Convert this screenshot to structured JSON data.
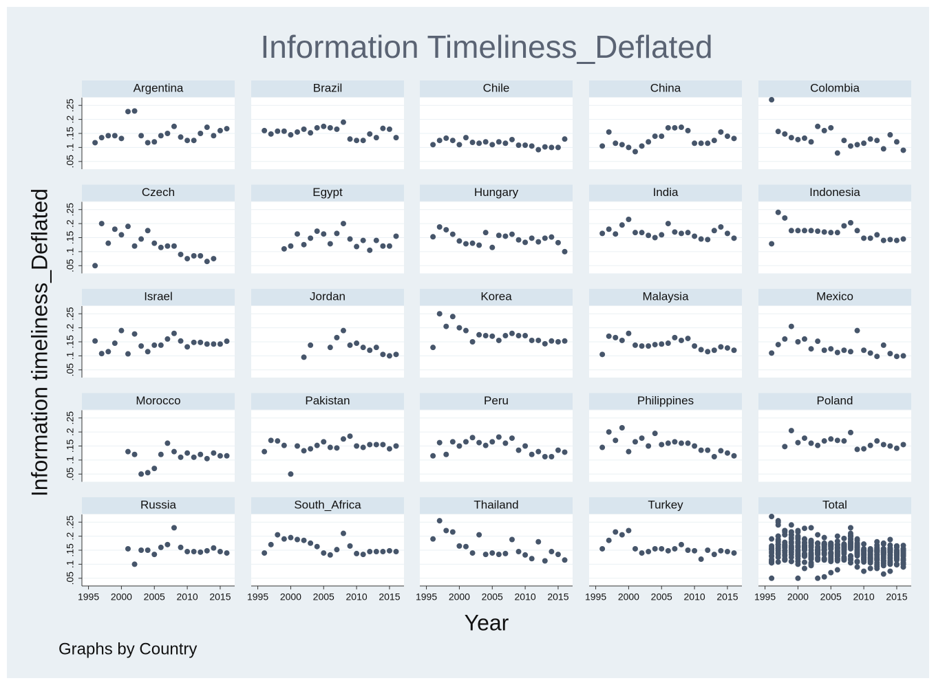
{
  "chart_data": {
    "type": "scatter",
    "title": "Information Timeliness_Deflated",
    "ylabel": "Information timeliness_Deflated",
    "xlabel": "Year",
    "note": "Graphs by Country",
    "color": "#46556a",
    "grid": true,
    "x": [
      1996,
      1997,
      1998,
      1999,
      2000,
      2001,
      2002,
      2003,
      2004,
      2005,
      2006,
      2007,
      2008,
      2009,
      2010,
      2011,
      2012,
      2013,
      2014,
      2015,
      2016
    ],
    "xlim": [
      1994,
      2017.2
    ],
    "ylim": [
      0.0225,
      0.2775
    ],
    "xticks": [
      1995,
      2000,
      2005,
      2010,
      2015
    ],
    "yticks": [
      {
        "value": 0.05,
        "label": ".05"
      },
      {
        "value": 0.1,
        "label": ".1"
      },
      {
        "value": 0.15,
        "label": ".15"
      },
      {
        "value": 0.2,
        "label": ".2"
      },
      {
        "value": 0.25,
        "label": ".25"
      }
    ],
    "panels": [
      {
        "name": "Argentina",
        "values": [
          0.117,
          0.135,
          0.142,
          0.142,
          0.132,
          0.228,
          0.23,
          0.142,
          0.117,
          0.12,
          0.142,
          0.15,
          0.175,
          0.137,
          0.125,
          0.125,
          0.15,
          0.172,
          0.142,
          0.16,
          0.167
        ]
      },
      {
        "name": "Brazil",
        "values": [
          0.16,
          0.148,
          0.158,
          0.158,
          0.145,
          0.155,
          0.165,
          0.152,
          0.17,
          0.175,
          0.17,
          0.165,
          0.19,
          0.13,
          0.125,
          0.125,
          0.148,
          0.135,
          0.168,
          0.165,
          0.135
        ]
      },
      {
        "name": "Chile",
        "values": [
          0.11,
          0.125,
          0.133,
          0.125,
          0.11,
          0.135,
          0.118,
          0.115,
          0.12,
          0.11,
          0.12,
          0.115,
          0.128,
          0.108,
          0.108,
          0.105,
          0.092,
          0.102,
          0.1,
          0.1,
          0.13
        ]
      },
      {
        "name": "China",
        "values": [
          0.105,
          0.155,
          0.115,
          0.11,
          0.1,
          0.085,
          0.105,
          0.12,
          0.14,
          0.14,
          0.17,
          0.17,
          0.172,
          0.16,
          0.115,
          0.115,
          0.115,
          0.125,
          0.155,
          0.14,
          0.132
        ]
      },
      {
        "name": "Colombia",
        "values": [
          0.27,
          0.157,
          0.148,
          0.135,
          0.128,
          0.133,
          0.12,
          0.175,
          0.16,
          0.17,
          0.08,
          0.125,
          0.105,
          0.11,
          0.115,
          0.13,
          0.125,
          0.095,
          0.145,
          0.12,
          0.09
        ]
      },
      {
        "name": "Czech",
        "values": [
          0.05,
          0.2,
          0.13,
          0.18,
          0.16,
          0.19,
          0.12,
          0.145,
          0.175,
          0.13,
          0.115,
          0.12,
          0.12,
          0.09,
          0.075,
          0.085,
          0.085,
          0.065,
          0.075,
          null,
          null
        ]
      },
      {
        "name": "Egypt",
        "values": [
          null,
          null,
          null,
          0.11,
          0.12,
          0.163,
          0.125,
          0.148,
          0.173,
          0.163,
          0.128,
          0.165,
          0.2,
          0.145,
          0.118,
          0.14,
          0.105,
          0.14,
          0.12,
          0.12,
          0.155
        ]
      },
      {
        "name": "Hungary",
        "values": [
          0.153,
          0.188,
          0.178,
          0.162,
          0.138,
          0.128,
          0.13,
          0.123,
          0.168,
          0.115,
          0.158,
          0.155,
          0.162,
          0.142,
          0.133,
          0.148,
          0.135,
          0.148,
          0.152,
          0.132,
          0.1
        ]
      },
      {
        "name": "India",
        "values": [
          0.165,
          0.18,
          0.163,
          0.195,
          0.215,
          0.168,
          0.168,
          0.158,
          0.15,
          0.16,
          0.2,
          0.17,
          0.165,
          0.168,
          0.155,
          0.145,
          0.143,
          0.175,
          0.188,
          0.165,
          0.148
        ]
      },
      {
        "name": "Indonesia",
        "values": [
          0.128,
          0.24,
          0.22,
          0.175,
          0.175,
          0.175,
          0.175,
          0.173,
          0.17,
          0.168,
          0.168,
          0.192,
          0.203,
          0.175,
          0.148,
          0.148,
          0.16,
          0.14,
          0.143,
          0.14,
          0.145
        ]
      },
      {
        "name": "Israel",
        "values": [
          0.153,
          0.108,
          0.115,
          0.145,
          0.19,
          0.107,
          0.178,
          0.135,
          0.115,
          0.138,
          0.138,
          0.16,
          0.18,
          0.153,
          0.132,
          0.148,
          0.148,
          0.142,
          0.142,
          0.142,
          0.152
        ]
      },
      {
        "name": "Jordan",
        "values": [
          null,
          null,
          null,
          null,
          null,
          null,
          0.095,
          0.138,
          null,
          null,
          0.13,
          0.165,
          0.19,
          0.138,
          0.145,
          0.13,
          0.12,
          0.13,
          0.105,
          0.1,
          0.105
        ]
      },
      {
        "name": "Korea",
        "values": [
          0.13,
          0.25,
          0.205,
          0.24,
          0.2,
          0.19,
          0.15,
          0.175,
          0.172,
          0.17,
          0.155,
          0.172,
          0.18,
          0.172,
          0.172,
          0.155,
          0.155,
          0.143,
          0.153,
          0.15,
          0.153
        ]
      },
      {
        "name": "Malaysia",
        "values": [
          0.105,
          0.17,
          0.165,
          0.155,
          0.18,
          0.138,
          0.135,
          0.135,
          0.14,
          0.142,
          0.145,
          0.165,
          0.155,
          0.162,
          0.135,
          0.122,
          0.115,
          0.12,
          0.132,
          0.128,
          0.12
        ]
      },
      {
        "name": "Mexico",
        "values": [
          0.11,
          0.14,
          0.16,
          0.205,
          0.15,
          0.16,
          0.125,
          0.152,
          0.12,
          0.125,
          0.112,
          0.12,
          0.115,
          0.19,
          0.12,
          0.11,
          0.098,
          0.138,
          0.108,
          0.098,
          0.1
        ]
      },
      {
        "name": "Morocco",
        "values": [
          null,
          null,
          null,
          null,
          null,
          0.13,
          0.12,
          0.05,
          0.055,
          0.07,
          0.12,
          0.16,
          0.13,
          0.11,
          0.125,
          0.11,
          0.12,
          0.105,
          0.125,
          0.115,
          0.115
        ]
      },
      {
        "name": "Pakistan",
        "values": [
          0.13,
          0.17,
          0.168,
          0.152,
          0.05,
          0.15,
          0.133,
          0.14,
          0.152,
          0.165,
          0.145,
          0.143,
          0.175,
          0.185,
          0.15,
          0.145,
          0.155,
          0.155,
          0.155,
          0.14,
          0.15
        ]
      },
      {
        "name": "Peru",
        "values": [
          0.115,
          0.162,
          0.12,
          0.165,
          0.15,
          0.165,
          0.18,
          0.162,
          0.152,
          0.165,
          0.182,
          0.16,
          0.178,
          0.135,
          0.15,
          0.12,
          0.13,
          0.112,
          0.112,
          0.135,
          0.128
        ]
      },
      {
        "name": "Philippines",
        "values": [
          0.145,
          0.2,
          0.17,
          0.215,
          0.13,
          0.165,
          0.178,
          0.15,
          0.195,
          0.155,
          0.16,
          0.165,
          0.16,
          0.16,
          0.15,
          0.135,
          0.135,
          0.112,
          0.133,
          0.125,
          0.115
        ]
      },
      {
        "name": "Poland",
        "values": [
          null,
          null,
          0.148,
          0.205,
          0.162,
          0.178,
          0.16,
          0.152,
          0.168,
          0.175,
          0.17,
          0.168,
          0.198,
          0.138,
          0.14,
          0.152,
          0.168,
          0.155,
          0.15,
          0.142,
          0.155
        ]
      },
      {
        "name": "Russia",
        "values": [
          null,
          null,
          null,
          null,
          null,
          0.155,
          0.1,
          0.15,
          0.15,
          0.135,
          0.16,
          0.17,
          0.23,
          0.16,
          0.145,
          0.145,
          0.143,
          0.148,
          0.158,
          0.145,
          0.14
        ]
      },
      {
        "name": "South_Africa",
        "values": [
          0.14,
          0.17,
          0.205,
          0.19,
          0.195,
          0.188,
          0.185,
          0.175,
          0.163,
          0.14,
          0.133,
          0.152,
          0.21,
          0.165,
          0.138,
          0.135,
          0.145,
          0.145,
          0.145,
          0.148,
          0.145
        ]
      },
      {
        "name": "Thailand",
        "values": [
          0.19,
          0.255,
          0.22,
          0.215,
          0.165,
          0.163,
          0.14,
          0.205,
          0.135,
          0.14,
          0.135,
          0.138,
          0.188,
          0.145,
          0.133,
          0.12,
          0.18,
          0.112,
          0.145,
          0.135,
          0.115
        ]
      },
      {
        "name": "Turkey",
        "values": [
          0.155,
          0.185,
          0.215,
          0.205,
          0.22,
          0.155,
          0.14,
          0.145,
          0.155,
          0.155,
          0.148,
          0.155,
          0.17,
          0.15,
          0.148,
          0.118,
          0.15,
          0.135,
          0.148,
          0.145,
          0.14
        ]
      }
    ],
    "total_title": "Total"
  }
}
